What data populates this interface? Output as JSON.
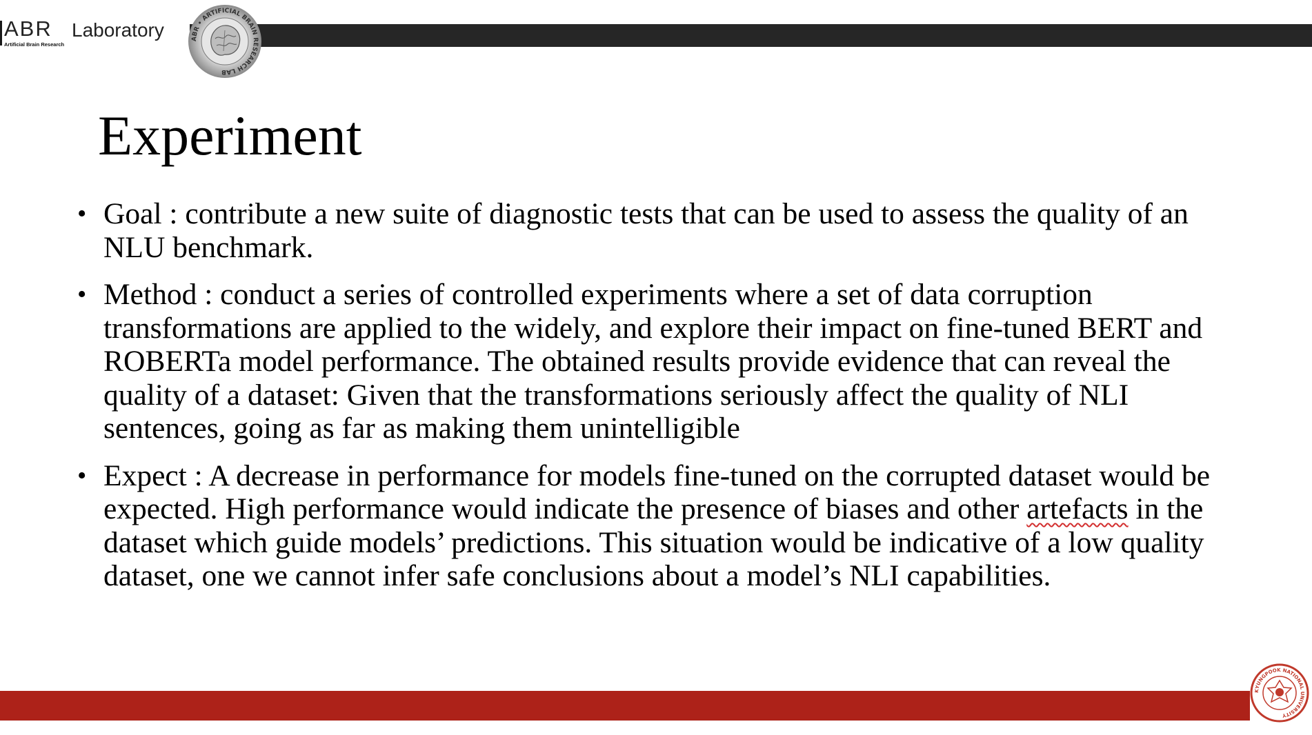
{
  "header": {
    "logo_main": "ABR",
    "logo_lab": "Laboratory",
    "logo_sub": "Artificial Brain Research",
    "seal_text": "ABR • ARTIFICIAL BRAIN RESEARCH LAB"
  },
  "slide": {
    "title": "Experiment",
    "bullets": [
      {
        "text": "Goal : contribute a new suite of diagnostic tests that can be used to assess the quality of an NLU benchmark."
      },
      {
        "text": "Method : conduct a series of controlled experiments where a set of data corruption transformations are applied to the widely, and explore their impact on fine-tuned BERT and ROBERTa model performance. The obtained results provide evidence that can reveal the quality of a dataset: Given that the transformations seriously affect the quality of NLI sentences, going as far as making them unintelligible"
      },
      {
        "text_before": "Expect : A decrease in performance for models fine-tuned on the corrupted dataset would be expected. High performance would indicate the presence of biases and other ",
        "text_flagged": "artefacts",
        "text_after": " in the dataset which guide models’ predictions. This situation would be indicative of a low quality dataset, one we cannot infer safe conclusions about a model’s NLI capabilities."
      }
    ]
  },
  "footer": {
    "university_seal_text": "KYUNGPOOK NATIONAL UNIVERSITY"
  },
  "colors": {
    "top_bar": "#262626",
    "bottom_bar": "#ad2219",
    "seal_red": "#c0392b"
  }
}
